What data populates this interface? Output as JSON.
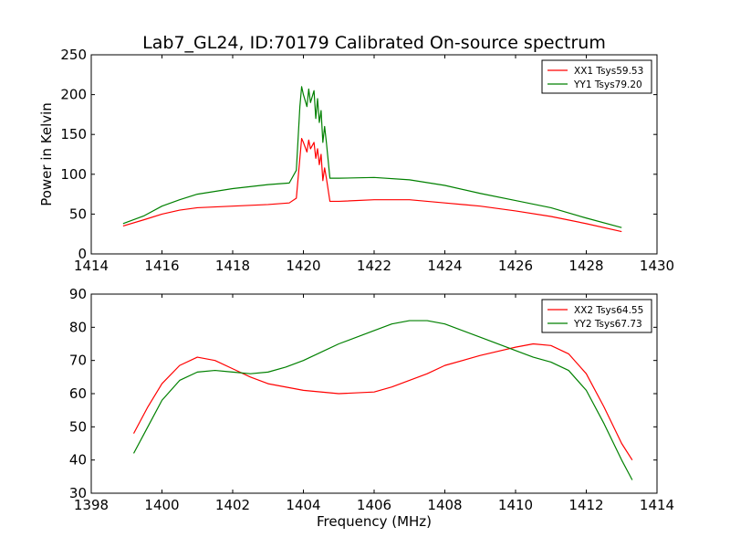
{
  "chart_data": [
    {
      "type": "line",
      "title": "Lab7_GL24, ID:70179 Calibrated On-source spectrum",
      "xlabel": "",
      "ylabel": "Power in Kelvin",
      "xlim": [
        1414,
        1430
      ],
      "ylim": [
        0,
        250
      ],
      "xticks": [
        1414,
        1416,
        1418,
        1420,
        1422,
        1424,
        1426,
        1428,
        1430
      ],
      "yticks": [
        0,
        50,
        100,
        150,
        200,
        250
      ],
      "legend_position": "top-right",
      "series": [
        {
          "name": "XX1 Tsys59.53",
          "color": "#ff0000",
          "x": [
            1414.9,
            1415.5,
            1416.0,
            1416.5,
            1417.0,
            1418.0,
            1419.0,
            1419.6,
            1419.8,
            1419.9,
            1419.95,
            1420.0,
            1420.1,
            1420.15,
            1420.2,
            1420.3,
            1420.35,
            1420.4,
            1420.45,
            1420.5,
            1420.55,
            1420.6,
            1420.65,
            1420.75,
            1421.0,
            1422.0,
            1423.0,
            1424.0,
            1425.0,
            1426.0,
            1427.0,
            1428.0,
            1429.0
          ],
          "y": [
            35,
            43,
            50,
            55,
            58,
            60,
            62,
            64,
            70,
            120,
            145,
            140,
            128,
            143,
            132,
            140,
            120,
            132,
            112,
            125,
            92,
            108,
            95,
            66,
            66,
            68,
            68,
            64,
            60,
            54,
            47,
            38,
            28
          ]
        },
        {
          "name": "YY1 Tsys79.20",
          "color": "#008000",
          "x": [
            1414.9,
            1415.5,
            1416.0,
            1416.5,
            1417.0,
            1418.0,
            1419.0,
            1419.6,
            1419.8,
            1419.9,
            1419.95,
            1420.0,
            1420.1,
            1420.15,
            1420.2,
            1420.3,
            1420.35,
            1420.4,
            1420.45,
            1420.5,
            1420.55,
            1420.6,
            1420.65,
            1420.75,
            1421.0,
            1422.0,
            1423.0,
            1424.0,
            1425.0,
            1426.0,
            1427.0,
            1428.0,
            1429.0
          ],
          "y": [
            38,
            48,
            60,
            68,
            75,
            82,
            87,
            89,
            105,
            185,
            210,
            200,
            185,
            207,
            190,
            205,
            170,
            195,
            165,
            180,
            140,
            160,
            140,
            95,
            95,
            96,
            93,
            86,
            76,
            67,
            58,
            45,
            33
          ]
        }
      ]
    },
    {
      "type": "line",
      "title": "",
      "xlabel": "Frequency (MHz)",
      "ylabel": "",
      "xlim": [
        1398,
        1414
      ],
      "ylim": [
        30,
        90
      ],
      "xticks": [
        1398,
        1400,
        1402,
        1404,
        1406,
        1408,
        1410,
        1412,
        1414
      ],
      "yticks": [
        30,
        40,
        50,
        60,
        70,
        80,
        90
      ],
      "legend_position": "top-right",
      "series": [
        {
          "name": "XX2 Tsys64.55",
          "color": "#ff0000",
          "x": [
            1399.2,
            1399.6,
            1400.0,
            1400.5,
            1401.0,
            1401.5,
            1402.0,
            1402.5,
            1403.0,
            1403.5,
            1404.0,
            1405.0,
            1406.0,
            1406.5,
            1407.0,
            1407.5,
            1408.0,
            1409.0,
            1410.0,
            1410.5,
            1411.0,
            1411.5,
            1412.0,
            1412.5,
            1413.0,
            1413.3
          ],
          "y": [
            48,
            56,
            63,
            68.5,
            71,
            70,
            67.5,
            65,
            63,
            62,
            61,
            60,
            60.5,
            62,
            64,
            66,
            68.5,
            71.5,
            74,
            75,
            74.5,
            72,
            66,
            56,
            45,
            40
          ]
        },
        {
          "name": "YY2 Tsys67.73",
          "color": "#008000",
          "x": [
            1399.2,
            1399.6,
            1400.0,
            1400.5,
            1401.0,
            1401.5,
            1402.0,
            1402.5,
            1403.0,
            1403.5,
            1404.0,
            1405.0,
            1406.0,
            1406.5,
            1407.0,
            1407.5,
            1408.0,
            1409.0,
            1410.0,
            1410.5,
            1411.0,
            1411.5,
            1412.0,
            1412.5,
            1413.0,
            1413.3
          ],
          "y": [
            42,
            50,
            58,
            64,
            66.5,
            67,
            66.5,
            66,
            66.5,
            68,
            70,
            75,
            79,
            81,
            82,
            82,
            81,
            77,
            73,
            71,
            69.5,
            67,
            61,
            51,
            40,
            34
          ]
        }
      ]
    }
  ]
}
